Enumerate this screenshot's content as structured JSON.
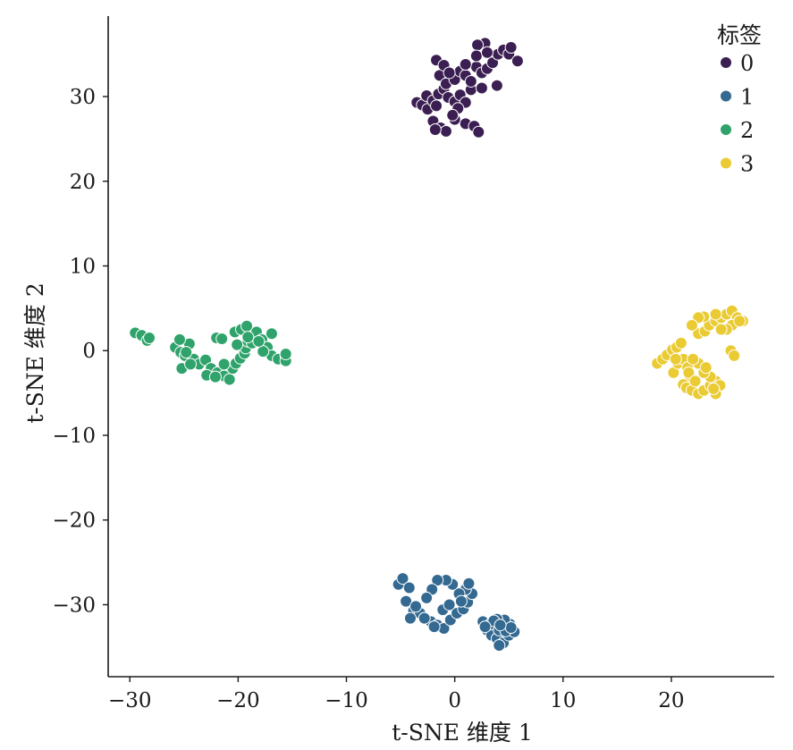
{
  "chart_data": {
    "type": "scatter",
    "xlabel": "t-SNE 维度 1",
    "ylabel": "t-SNE 维度 2",
    "xlim": [
      -32,
      29.5
    ],
    "ylim": [
      -38.5,
      39.5
    ],
    "xticks": [
      -30,
      -20,
      -10,
      0,
      10,
      20
    ],
    "yticks": [
      30,
      20,
      10,
      0,
      -10,
      -20,
      -30
    ],
    "tick_labels": {
      "x": [
        "−30",
        "−20",
        "−10",
        "0",
        "10",
        "20"
      ],
      "y": [
        "30",
        "20",
        "10",
        "0",
        "−10",
        "−20",
        "−30"
      ]
    },
    "grid": false,
    "legend": {
      "title": "标签",
      "position": "top-right"
    },
    "series": [
      {
        "name": "0",
        "color": "#3b1f52",
        "points": [
          [
            -3.5,
            29.3
          ],
          [
            -3,
            29
          ],
          [
            -2.5,
            28.5
          ],
          [
            -2.6,
            30.1
          ],
          [
            -2,
            29.5
          ],
          [
            -1.5,
            30.3
          ],
          [
            -1,
            30.9
          ],
          [
            -1.7,
            28.9
          ],
          [
            -0.6,
            29.9
          ],
          [
            0,
            29.4
          ],
          [
            0.5,
            30.2
          ],
          [
            1,
            29.3
          ],
          [
            1.5,
            30.8
          ],
          [
            2.5,
            31
          ],
          [
            -1.4,
            32.5
          ],
          [
            -0.8,
            31.5
          ],
          [
            0,
            32
          ],
          [
            0.5,
            33
          ],
          [
            1,
            32.5
          ],
          [
            1.5,
            31.8
          ],
          [
            2,
            33.5
          ],
          [
            2.5,
            32.8
          ],
          [
            3,
            33.3
          ],
          [
            3.5,
            34
          ],
          [
            4,
            35
          ],
          [
            4.5,
            35.5
          ],
          [
            5,
            35
          ],
          [
            5.2,
            35.8
          ],
          [
            5.8,
            34.2
          ],
          [
            2.8,
            36.3
          ],
          [
            2.1,
            36.1
          ],
          [
            3.9,
            31.3
          ],
          [
            -1.7,
            34.3
          ],
          [
            -1,
            33.7
          ],
          [
            -0.5,
            32.8
          ],
          [
            1,
            33.8
          ],
          [
            2,
            34.8
          ],
          [
            3,
            35.2
          ],
          [
            -2,
            27.1
          ],
          [
            -1.3,
            26.3
          ],
          [
            -0.8,
            25.9
          ],
          [
            0,
            27.3
          ],
          [
            1,
            26.8
          ],
          [
            1.8,
            26.5
          ],
          [
            2.2,
            25.8
          ],
          [
            -1.8,
            26.1
          ],
          [
            0.3,
            28.6
          ],
          [
            -0.2,
            27.8
          ]
        ]
      },
      {
        "name": "1",
        "color": "#346991",
        "points": [
          [
            -5.2,
            -27.6
          ],
          [
            -4.8,
            -26.9
          ],
          [
            -4.2,
            -28
          ],
          [
            -4.5,
            -29.6
          ],
          [
            -3.8,
            -30.7
          ],
          [
            -3.2,
            -31
          ],
          [
            -2.8,
            -31.6
          ],
          [
            -2.2,
            -32
          ],
          [
            -1.6,
            -32.4
          ],
          [
            -1,
            -32.8
          ],
          [
            -0.4,
            -31.8
          ],
          [
            0.2,
            -31
          ],
          [
            0.8,
            -30.5
          ],
          [
            1.2,
            -29.7
          ],
          [
            1.6,
            -28.7
          ],
          [
            1,
            -28.2
          ],
          [
            0.4,
            -28.7
          ],
          [
            -0.2,
            -27.6
          ],
          [
            -0.8,
            -27.1
          ],
          [
            -1.6,
            -27.1
          ],
          [
            -2.1,
            -28.2
          ],
          [
            -2.6,
            -29.2
          ],
          [
            -3.6,
            -30.2
          ],
          [
            -4.1,
            -31.6
          ],
          [
            -1.1,
            -30.6
          ],
          [
            -0.5,
            -30
          ],
          [
            1.3,
            -27.5
          ],
          [
            0.6,
            -29.6
          ],
          [
            -2.8,
            -31.6
          ],
          [
            -1.9,
            -32.6
          ],
          [
            2.6,
            -32
          ],
          [
            3,
            -33
          ],
          [
            3.4,
            -33.6
          ],
          [
            3.9,
            -34
          ],
          [
            4.5,
            -34.5
          ],
          [
            5,
            -33.6
          ],
          [
            5.5,
            -33.2
          ],
          [
            5.1,
            -32.3
          ],
          [
            4.6,
            -31.8
          ],
          [
            3.9,
            -31.7
          ],
          [
            3.3,
            -32.3
          ],
          [
            4.1,
            -33
          ],
          [
            4.7,
            -33.1
          ],
          [
            5.2,
            -32.7
          ],
          [
            4.1,
            -34.8
          ],
          [
            3.6,
            -31.9
          ],
          [
            2.8,
            -32.6
          ],
          [
            4.2,
            -32.4
          ]
        ]
      },
      {
        "name": "2",
        "color": "#2fa36b",
        "points": [
          [
            -29.5,
            2.1
          ],
          [
            -28.9,
            1.8
          ],
          [
            -28.4,
            1.2
          ],
          [
            -28.2,
            1.5
          ],
          [
            -25.8,
            0.4
          ],
          [
            -25.3,
            -0.2
          ],
          [
            -24.9,
            -0.6
          ],
          [
            -25.2,
            -2.1
          ],
          [
            -24.1,
            -1
          ],
          [
            -23.6,
            -1.6
          ],
          [
            -23,
            -1.1
          ],
          [
            -22.5,
            -2.1
          ],
          [
            -21.9,
            -2.6
          ],
          [
            -21.3,
            -3
          ],
          [
            -20.8,
            -3.4
          ],
          [
            -20.5,
            -2.1
          ],
          [
            -20.2,
            -1.5
          ],
          [
            -19.8,
            -0.9
          ],
          [
            -19.4,
            -0.3
          ],
          [
            -19.3,
            0.3
          ],
          [
            -19.1,
            1.1
          ],
          [
            -18.7,
            1.8
          ],
          [
            -18.3,
            2.2
          ],
          [
            -17.8,
            1.3
          ],
          [
            -17.3,
            0.4
          ],
          [
            -16.9,
            -0.6
          ],
          [
            -16.3,
            -1
          ],
          [
            -15.6,
            -0.6
          ],
          [
            -15.6,
            -1.2
          ],
          [
            -22,
            1.5
          ],
          [
            -21.5,
            1.4
          ],
          [
            -20.3,
            2.2
          ],
          [
            -19.7,
            2.5
          ],
          [
            -19.2,
            2.9
          ],
          [
            -18.7,
            0.9
          ],
          [
            -17.7,
            -0.1
          ],
          [
            -24.5,
            0.8
          ],
          [
            -25.4,
            1.3
          ],
          [
            -24.8,
            -0.2
          ],
          [
            -22.9,
            -2.9
          ],
          [
            -22.1,
            -3.1
          ],
          [
            -21.3,
            -1.6
          ],
          [
            -20.1,
            0.7
          ],
          [
            -19.1,
            1.6
          ],
          [
            -18.1,
            1.1
          ],
          [
            -16.9,
            2
          ],
          [
            -15.6,
            -0.4
          ],
          [
            -24.4,
            -1.6
          ]
        ]
      },
      {
        "name": "3",
        "color": "#eacb34",
        "points": [
          [
            18.7,
            -1.5
          ],
          [
            19.2,
            -1
          ],
          [
            19.6,
            -0.5
          ],
          [
            20.1,
            0.1
          ],
          [
            20.5,
            0.4
          ],
          [
            20.9,
            0.9
          ],
          [
            20.2,
            -2.6
          ],
          [
            20.6,
            -1.5
          ],
          [
            21.1,
            -1
          ],
          [
            21.5,
            -2
          ],
          [
            21.7,
            -3
          ],
          [
            21.1,
            -4
          ],
          [
            21.4,
            -4.4
          ],
          [
            21.9,
            -4.7
          ],
          [
            22.5,
            -5.1
          ],
          [
            23,
            -4.7
          ],
          [
            23.6,
            -4.1
          ],
          [
            24.1,
            -3.6
          ],
          [
            24.5,
            -4.1
          ],
          [
            24.1,
            -5.1
          ],
          [
            23.6,
            -3.1
          ],
          [
            23,
            -2.6
          ],
          [
            22.5,
            -1.5
          ],
          [
            22,
            -1
          ],
          [
            22.5,
            2
          ],
          [
            23.1,
            2.3
          ],
          [
            23.5,
            3
          ],
          [
            24.1,
            3.5
          ],
          [
            24.6,
            3.9
          ],
          [
            25.1,
            4.3
          ],
          [
            25.6,
            4.7
          ],
          [
            26.1,
            3.9
          ],
          [
            26.6,
            3.5
          ],
          [
            25.6,
            3
          ],
          [
            25.1,
            2.5
          ],
          [
            24.6,
            2.5
          ],
          [
            24.1,
            4.3
          ],
          [
            23,
            4
          ],
          [
            22.5,
            3.9
          ],
          [
            21.9,
            3
          ],
          [
            20.4,
            -1
          ],
          [
            21.6,
            -2.6
          ],
          [
            22.2,
            -3.6
          ],
          [
            23.2,
            -2
          ],
          [
            23.9,
            -4.5
          ],
          [
            25.5,
            0
          ],
          [
            25.8,
            -0.6
          ],
          [
            26.3,
            3.5
          ]
        ]
      }
    ]
  }
}
